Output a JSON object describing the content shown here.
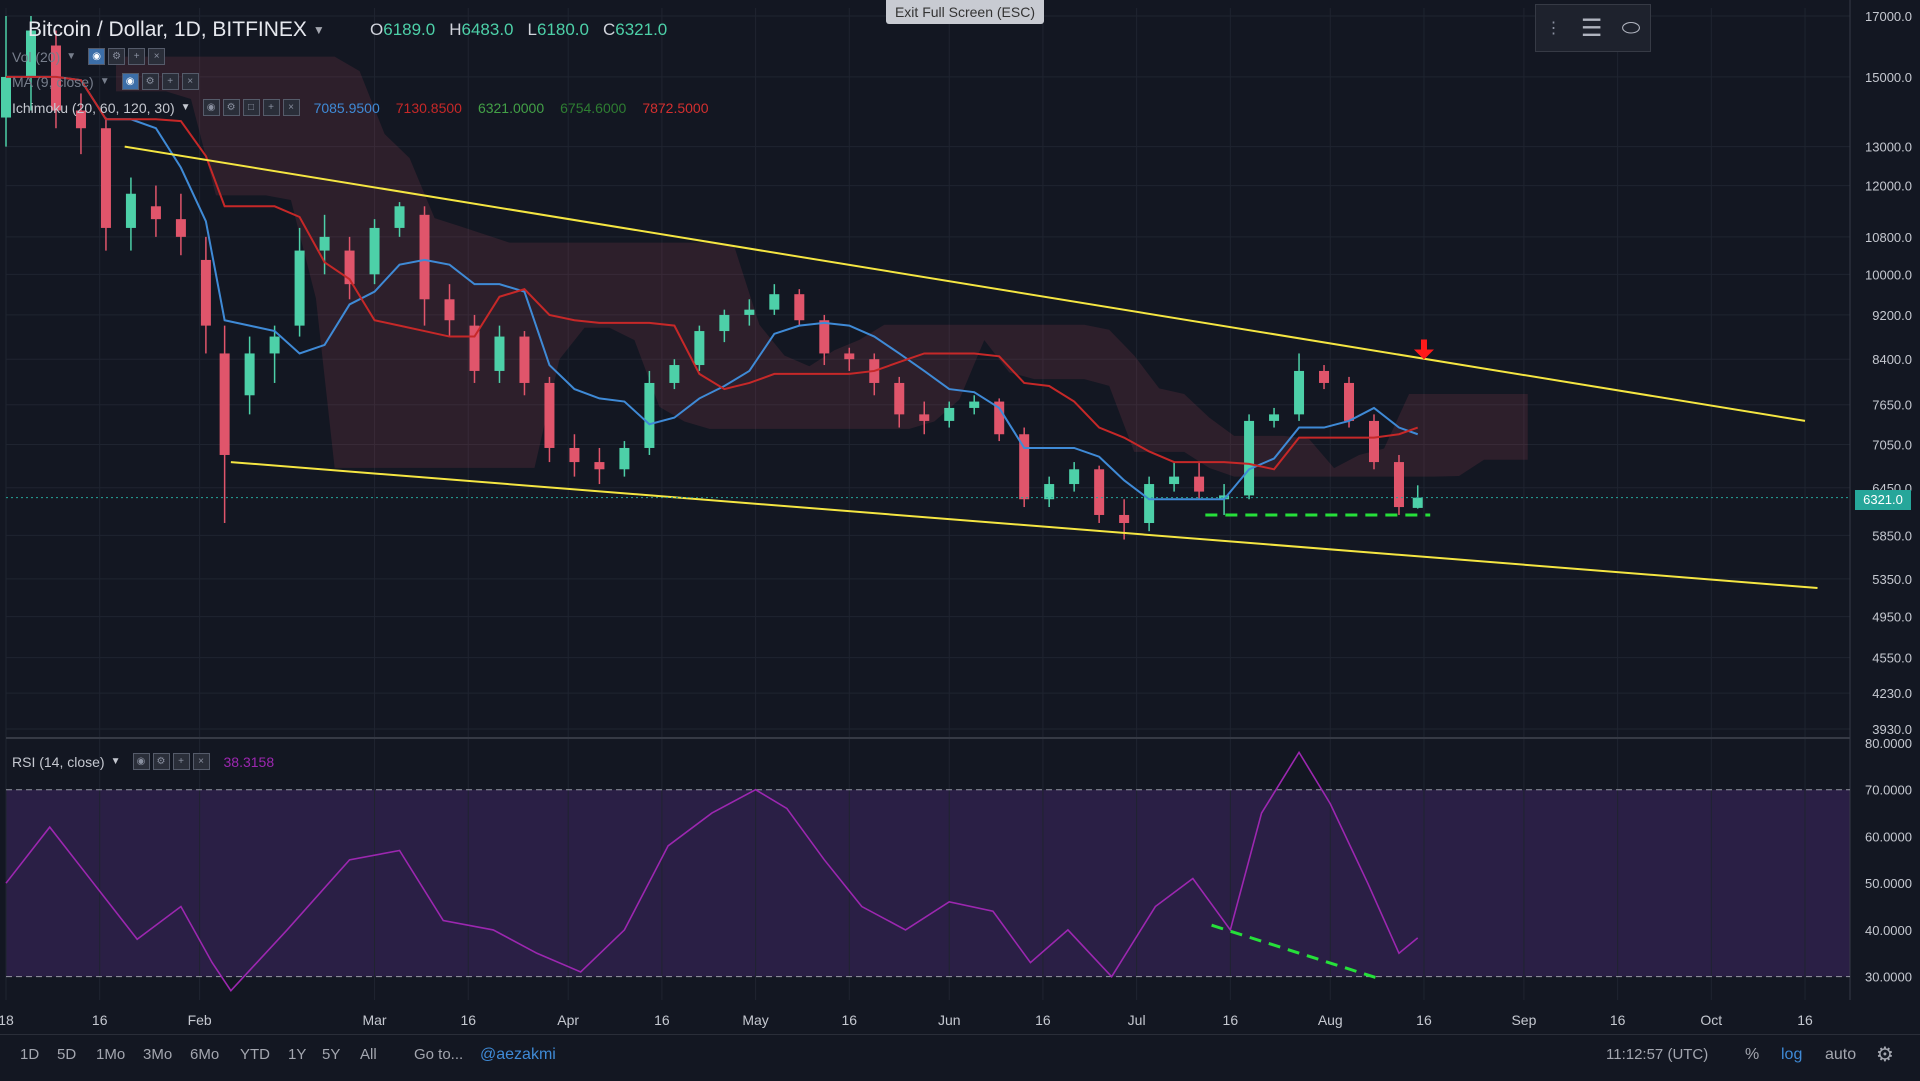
{
  "header": {
    "symbol": "Bitcoin / Dollar, 1D, BITFINEX",
    "ohlc": {
      "o_label": "O",
      "o": "6189.0",
      "h_label": "H",
      "h": "6483.0",
      "l_label": "L",
      "l": "6180.0",
      "c_label": "C",
      "c": "6321.0"
    },
    "vol_label": "Vol (20)",
    "ma_label": "MA (9, close)",
    "ichimoku_label": "Ichimoku (20, 60, 120, 30)",
    "ichimoku_values": [
      "7085.9500",
      "7130.8500",
      "6321.0000",
      "6754.6000",
      "7872.5000"
    ],
    "ichimoku_colors": [
      "#3f8ad6",
      "#c62828",
      "#43a047",
      "#2e7d32",
      "#d32f2f"
    ]
  },
  "exit_fullscreen": "Exit Full Screen (ESC)",
  "price_axis": {
    "labels": [
      "17000.0",
      "15000.0",
      "13000.0",
      "12000.0",
      "10800.0",
      "10000.0",
      "9200.0",
      "8400.0",
      "7650.0",
      "7050.0",
      "6450.0",
      "5850.0",
      "5350.0",
      "4950.0",
      "4550.0",
      "4230.0",
      "3930.0"
    ],
    "current_price": "6321.0"
  },
  "rsi": {
    "label": "RSI (14, close)",
    "value": "38.3158",
    "axis_labels": [
      "80.0000",
      "70.0000",
      "60.0000",
      "50.0000",
      "40.0000",
      "30.0000"
    ],
    "color": "#9c27b0"
  },
  "time_axis": {
    "labels": [
      "18",
      "16",
      "Feb",
      "Mar",
      "16",
      "Apr",
      "16",
      "May",
      "16",
      "Jun",
      "16",
      "Jul",
      "16",
      "Aug",
      "16",
      "Sep",
      "16",
      "Oct",
      "16"
    ]
  },
  "bottom_bar": {
    "timeframes": [
      "1D",
      "5D",
      "1Mo",
      "3Mo",
      "6Mo",
      "YTD",
      "1Y",
      "5Y",
      "All"
    ],
    "goto": "Go to...",
    "author": "@aezakmi",
    "time": "11:12:57 (UTC)",
    "percent": "%",
    "log": "log",
    "auto": "auto"
  },
  "colors": {
    "background": "#131722",
    "bull": "#4dd0a8",
    "bear": "#e0556b",
    "trendline": "#f5e642",
    "support": "#26e03a",
    "arrow": "#ff1a1a"
  },
  "chart_data": {
    "type": "candlestick",
    "y_scale": "log",
    "ylim": [
      3930,
      17000
    ],
    "x_range": [
      "2018-01-01",
      "2018-10-20"
    ],
    "candles": [
      [
        "2018-01-01",
        13800,
        17000,
        13000,
        15000
      ],
      [
        "2018-01-05",
        15000,
        17000,
        14000,
        16500
      ],
      [
        "2018-01-09",
        16000,
        16500,
        13500,
        14000
      ],
      [
        "2018-01-13",
        14000,
        14500,
        12800,
        13500
      ],
      [
        "2018-01-17",
        13500,
        13800,
        10500,
        11000
      ],
      [
        "2018-01-21",
        11000,
        12200,
        10500,
        11800
      ],
      [
        "2018-01-25",
        11500,
        12000,
        10800,
        11200
      ],
      [
        "2018-01-29",
        11200,
        11800,
        10400,
        10800
      ],
      [
        "2018-02-02",
        10300,
        10800,
        8500,
        9000
      ],
      [
        "2018-02-05",
        8500,
        9000,
        6000,
        6900
      ],
      [
        "2018-02-09",
        7800,
        8800,
        7500,
        8500
      ],
      [
        "2018-02-13",
        8500,
        9000,
        8000,
        8800
      ],
      [
        "2018-02-17",
        9000,
        11000,
        8800,
        10500
      ],
      [
        "2018-02-21",
        10500,
        11300,
        10000,
        10800
      ],
      [
        "2018-02-25",
        10500,
        10800,
        9500,
        9800
      ],
      [
        "2018-03-01",
        10000,
        11200,
        9800,
        11000
      ],
      [
        "2018-03-05",
        11000,
        11600,
        10800,
        11500
      ],
      [
        "2018-03-09",
        11300,
        11500,
        9000,
        9500
      ],
      [
        "2018-03-13",
        9500,
        9800,
        8800,
        9100
      ],
      [
        "2018-03-17",
        9000,
        9200,
        8000,
        8200
      ],
      [
        "2018-03-21",
        8200,
        9000,
        8000,
        8800
      ],
      [
        "2018-03-25",
        8800,
        8900,
        7800,
        8000
      ],
      [
        "2018-03-29",
        8000,
        8100,
        6800,
        7000
      ],
      [
        "2018-04-02",
        7000,
        7200,
        6600,
        6800
      ],
      [
        "2018-04-06",
        6800,
        7000,
        6500,
        6700
      ],
      [
        "2018-04-10",
        6700,
        7100,
        6600,
        7000
      ],
      [
        "2018-04-14",
        7000,
        8200,
        6900,
        8000
      ],
      [
        "2018-04-18",
        8000,
        8400,
        7900,
        8300
      ],
      [
        "2018-04-22",
        8300,
        9000,
        8200,
        8900
      ],
      [
        "2018-04-26",
        8900,
        9300,
        8700,
        9200
      ],
      [
        "2018-04-30",
        9200,
        9500,
        9000,
        9300
      ],
      [
        "2018-05-04",
        9300,
        9800,
        9200,
        9600
      ],
      [
        "2018-05-08",
        9600,
        9700,
        9000,
        9100
      ],
      [
        "2018-05-12",
        9100,
        9200,
        8300,
        8500
      ],
      [
        "2018-05-16",
        8500,
        8600,
        8200,
        8400
      ],
      [
        "2018-05-20",
        8400,
        8500,
        7800,
        8000
      ],
      [
        "2018-05-24",
        8000,
        8100,
        7300,
        7500
      ],
      [
        "2018-05-28",
        7500,
        7700,
        7200,
        7400
      ],
      [
        "2018-06-01",
        7400,
        7700,
        7300,
        7600
      ],
      [
        "2018-06-05",
        7600,
        7800,
        7500,
        7700
      ],
      [
        "2018-06-09",
        7700,
        7750,
        7100,
        7200
      ],
      [
        "2018-06-13",
        7200,
        7300,
        6200,
        6300
      ],
      [
        "2018-06-17",
        6300,
        6600,
        6200,
        6500
      ],
      [
        "2018-06-21",
        6500,
        6800,
        6400,
        6700
      ],
      [
        "2018-06-25",
        6700,
        6750,
        6000,
        6100
      ],
      [
        "2018-06-29",
        6100,
        6300,
        5800,
        6000
      ],
      [
        "2018-07-03",
        6000,
        6600,
        5900,
        6500
      ],
      [
        "2018-07-07",
        6500,
        6800,
        6400,
        6600
      ],
      [
        "2018-07-11",
        6600,
        6800,
        6300,
        6400
      ],
      [
        "2018-07-15",
        6300,
        6500,
        6100,
        6350
      ],
      [
        "2018-07-19",
        6350,
        7500,
        6300,
        7400
      ],
      [
        "2018-07-23",
        7400,
        7600,
        7300,
        7500
      ],
      [
        "2018-07-27",
        7500,
        8500,
        7400,
        8200
      ],
      [
        "2018-07-31",
        8200,
        8300,
        7900,
        8000
      ],
      [
        "2018-08-04",
        8000,
        8100,
        7300,
        7400
      ],
      [
        "2018-08-08",
        7400,
        7500,
        6700,
        6800
      ],
      [
        "2018-08-12",
        6800,
        6900,
        6100,
        6200
      ],
      [
        "2018-08-15",
        6189,
        6483,
        6180,
        6321
      ]
    ],
    "lines": {
      "upper_trendline": [
        [
          "2018-01-20",
          13000
        ],
        [
          "2018-10-16",
          7400
        ]
      ],
      "lower_trendline": [
        [
          "2018-02-06",
          6800
        ],
        [
          "2018-10-18",
          5250
        ]
      ],
      "support_dashed": [
        [
          "2018-07-12",
          6100
        ],
        [
          "2018-08-17",
          6100
        ]
      ]
    },
    "rsi_series": [
      [
        "2018-01-01",
        50
      ],
      [
        "2018-01-08",
        62
      ],
      [
        "2018-01-15",
        50
      ],
      [
        "2018-01-22",
        38
      ],
      [
        "2018-01-29",
        45
      ],
      [
        "2018-02-03",
        33
      ],
      [
        "2018-02-06",
        27
      ],
      [
        "2018-02-15",
        40
      ],
      [
        "2018-02-25",
        55
      ],
      [
        "2018-03-05",
        57
      ],
      [
        "2018-03-12",
        42
      ],
      [
        "2018-03-20",
        40
      ],
      [
        "2018-03-27",
        35
      ],
      [
        "2018-04-03",
        31
      ],
      [
        "2018-04-10",
        40
      ],
      [
        "2018-04-17",
        58
      ],
      [
        "2018-04-24",
        65
      ],
      [
        "2018-05-01",
        70
      ],
      [
        "2018-05-06",
        66
      ],
      [
        "2018-05-12",
        55
      ],
      [
        "2018-05-18",
        45
      ],
      [
        "2018-05-25",
        40
      ],
      [
        "2018-06-01",
        46
      ],
      [
        "2018-06-08",
        44
      ],
      [
        "2018-06-14",
        33
      ],
      [
        "2018-06-20",
        40
      ],
      [
        "2018-06-27",
        30
      ],
      [
        "2018-07-04",
        45
      ],
      [
        "2018-07-10",
        51
      ],
      [
        "2018-07-16",
        40
      ],
      [
        "2018-07-21",
        65
      ],
      [
        "2018-07-27",
        78
      ],
      [
        "2018-08-01",
        67
      ],
      [
        "2018-08-07",
        50
      ],
      [
        "2018-08-12",
        35
      ],
      [
        "2018-08-15",
        38.3
      ]
    ],
    "rsi_ylim": [
      25,
      80
    ],
    "rsi_bands": [
      30,
      70
    ]
  }
}
